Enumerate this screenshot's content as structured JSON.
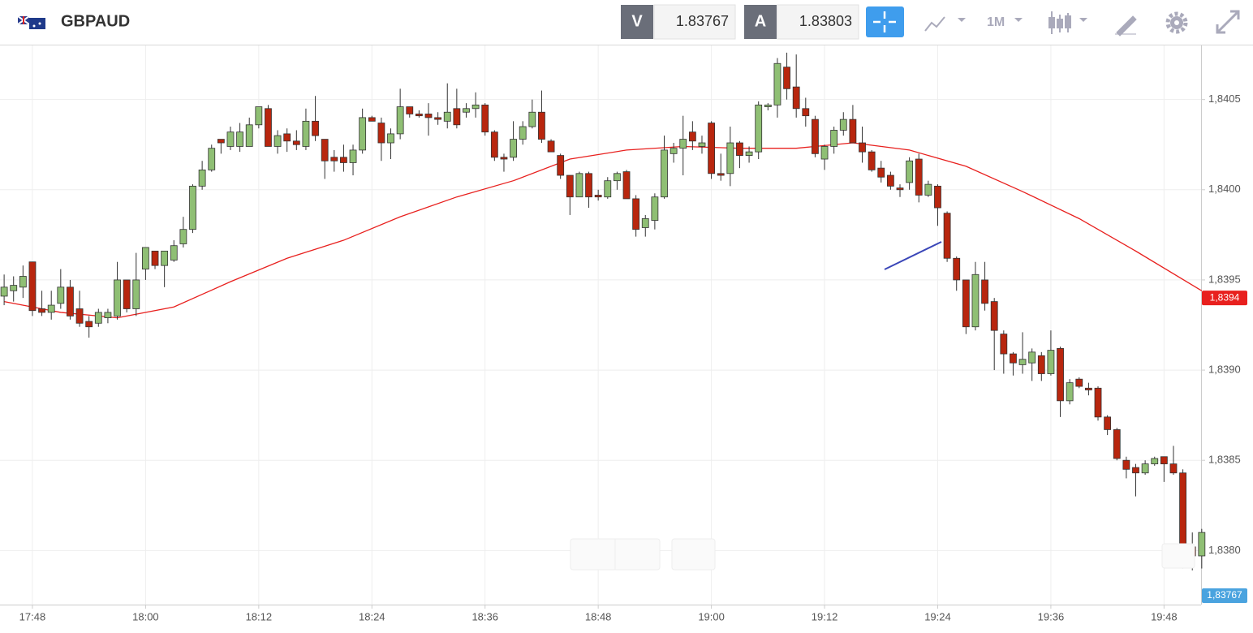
{
  "header": {
    "symbol": "GBPAUD",
    "bid_label": "V",
    "bid": "1.83767",
    "ask_label": "A",
    "ask": "1.83803",
    "timeframe": "1M"
  },
  "chart_data": {
    "type": "candlestick",
    "x": [
      "17:45",
      "17:46",
      "17:47",
      "17:48",
      "17:49",
      "17:50",
      "17:51",
      "17:52",
      "17:53",
      "17:54",
      "17:55",
      "17:56",
      "17:57",
      "17:58",
      "17:59",
      "18:00",
      "18:01",
      "18:02",
      "18:03",
      "18:04",
      "18:05",
      "18:06",
      "18:07",
      "18:08",
      "18:09",
      "18:10",
      "18:11",
      "18:12",
      "18:13",
      "18:14",
      "18:15",
      "18:16",
      "18:17",
      "18:18",
      "18:19",
      "18:20",
      "18:21",
      "18:22",
      "18:23",
      "18:24",
      "18:25",
      "18:26",
      "18:27",
      "18:28",
      "18:29",
      "18:30",
      "18:31",
      "18:32",
      "18:33",
      "18:34",
      "18:35",
      "18:36",
      "18:37",
      "18:38",
      "18:39",
      "18:40",
      "18:41",
      "18:42",
      "18:43",
      "18:44",
      "18:45",
      "18:46",
      "18:47",
      "18:48",
      "18:49",
      "18:50",
      "18:51",
      "18:52",
      "18:53",
      "18:54",
      "18:55",
      "18:56",
      "18:57",
      "18:58",
      "18:59",
      "19:00",
      "19:01",
      "19:02",
      "19:03",
      "19:04",
      "19:05",
      "19:06",
      "19:07",
      "19:08",
      "19:09",
      "19:10",
      "19:11",
      "19:12",
      "19:13",
      "19:14",
      "19:15",
      "19:16",
      "19:17",
      "19:18",
      "19:19",
      "19:20",
      "19:21",
      "19:22",
      "19:23",
      "19:24",
      "19:25",
      "19:26",
      "19:27",
      "19:28",
      "19:29",
      "19:30",
      "19:31",
      "19:32",
      "19:33",
      "19:34",
      "19:35",
      "19:36",
      "19:37",
      "19:38",
      "19:39",
      "19:40",
      "19:41",
      "19:42",
      "19:43",
      "19:44",
      "19:45",
      "19:46",
      "19:47",
      "19:48",
      "19:49",
      "19:50",
      "19:51",
      "19:52"
    ],
    "open": [
      1.83941,
      1.83944,
      1.83946,
      1.8396,
      1.83934,
      1.83932,
      1.83937,
      1.83946,
      1.83934,
      1.83927,
      1.83926,
      1.83929,
      1.8393,
      1.8395,
      1.83934,
      1.83956,
      1.83966,
      1.83958,
      1.83961,
      1.8397,
      1.83978,
      1.84002,
      1.84011,
      1.84028,
      1.84024,
      1.84024,
      1.84024,
      1.84036,
      1.84045,
      1.84024,
      1.84031,
      1.84027,
      1.84024,
      1.84038,
      1.84028,
      1.84018,
      1.84018,
      1.84015,
      1.84022,
      1.8404,
      1.84037,
      1.84026,
      1.84031,
      1.84046,
      1.84042,
      1.84042,
      1.8404,
      1.84038,
      1.84045,
      1.84043,
      1.84045,
      1.84047,
      1.84032,
      1.84018,
      1.84018,
      1.84028,
      1.84035,
      1.84043,
      1.84027,
      1.84019,
      1.84008,
      1.83996,
      1.84009,
      1.83997,
      1.83996,
      1.84005,
      1.8401,
      1.83995,
      1.83979,
      1.83983,
      1.83996,
      1.8402,
      1.84023,
      1.84032,
      1.84024,
      1.84037,
      1.84009,
      1.84009,
      1.84026,
      1.84019,
      1.84021,
      1.84046,
      1.84047,
      1.84068,
      1.84057,
      1.84045,
      1.84039,
      1.84017,
      1.84024,
      1.84033,
      1.84039,
      1.84026,
      1.84021,
      1.84012,
      1.84008,
      1.84001,
      1.84004,
      1.84017,
      1.83997,
      1.84002,
      1.83987,
      1.83962,
      1.8395,
      1.83924,
      1.8395,
      1.83938,
      1.8392,
      1.83909,
      1.83903,
      1.83904,
      1.83908,
      1.83898,
      1.83912,
      1.83883,
      1.83895,
      1.8389,
      1.8389,
      1.83874,
      1.83867,
      1.8385,
      1.83846,
      1.83843,
      1.83848,
      1.83852,
      1.83848,
      1.83843,
      1.83802,
      1.83797
    ],
    "high": [
      1.83953,
      1.83952,
      1.83958,
      1.8396,
      1.83944,
      1.83944,
      1.83956,
      1.8395,
      1.83944,
      1.8393,
      1.83934,
      1.83934,
      1.8396,
      1.8395,
      1.83965,
      1.83968,
      1.83966,
      1.83966,
      1.83972,
      1.83985,
      1.84003,
      1.84016,
      1.84025,
      1.84028,
      1.84035,
      1.84037,
      1.8404,
      1.84046,
      1.84047,
      1.84033,
      1.84034,
      1.84033,
      1.84045,
      1.84052,
      1.84028,
      1.84022,
      1.84025,
      1.84025,
      1.84045,
      1.84041,
      1.8404,
      1.84034,
      1.84056,
      1.84046,
      1.84044,
      1.84048,
      1.84043,
      1.84059,
      1.84056,
      1.84048,
      1.84054,
      1.84048,
      1.84033,
      1.8402,
      1.84038,
      1.84038,
      1.8405,
      1.84055,
      1.84028,
      1.8402,
      1.84008,
      1.8401,
      1.8401,
      1.84,
      1.84007,
      1.8401,
      1.84011,
      1.83997,
      1.83986,
      1.83998,
      1.8403,
      1.84026,
      1.84041,
      1.84038,
      1.8403,
      1.84038,
      1.8402,
      1.84035,
      1.84027,
      1.84024,
      1.84049,
      1.84048,
      1.84073,
      1.84076,
      1.84075,
      1.84051,
      1.84041,
      1.84025,
      1.84035,
      1.84043,
      1.84047,
      1.84035,
      1.84022,
      1.84016,
      1.8401,
      1.84003,
      1.84018,
      1.8402,
      1.84005,
      1.84003,
      1.83988,
      1.83963,
      1.8395,
      1.8396,
      1.8396,
      1.8394,
      1.83922,
      1.8391,
      1.83921,
      1.83912,
      1.8391,
      1.83922,
      1.83913,
      1.83895,
      1.83896,
      1.83893,
      1.83891,
      1.83875,
      1.83868,
      1.83852,
      1.83848,
      1.8385,
      1.83852,
      1.83852,
      1.83858,
      1.83845,
      1.8381,
      1.83812
    ],
    "low": [
      1.83936,
      1.83938,
      1.8394,
      1.8393,
      1.8393,
      1.83928,
      1.83934,
      1.83928,
      1.83924,
      1.83918,
      1.83924,
      1.83926,
      1.83928,
      1.83932,
      1.8393,
      1.8395,
      1.83956,
      1.83946,
      1.8396,
      1.83968,
      1.83976,
      1.84,
      1.8401,
      1.8402,
      1.84022,
      1.84021,
      1.84024,
      1.84034,
      1.84024,
      1.8402,
      1.84021,
      1.84022,
      1.84022,
      1.84027,
      1.84006,
      1.8401,
      1.8401,
      1.84008,
      1.8402,
      1.84038,
      1.84016,
      1.84017,
      1.84028,
      1.8404,
      1.8404,
      1.8403,
      1.84036,
      1.84034,
      1.84034,
      1.8404,
      1.8404,
      1.8403,
      1.84016,
      1.8401,
      1.84016,
      1.84025,
      1.84034,
      1.84026,
      1.84021,
      1.84006,
      1.83986,
      1.83996,
      1.8399,
      1.83994,
      1.83995,
      1.84,
      1.83995,
      1.83974,
      1.83974,
      1.83978,
      1.83995,
      1.84015,
      1.84008,
      1.84022,
      1.8402,
      1.84006,
      1.84005,
      1.84002,
      1.84012,
      1.84015,
      1.84017,
      1.84044,
      1.8404,
      1.8405,
      1.8404,
      1.84035,
      1.84018,
      1.84011,
      1.8402,
      1.8403,
      1.84026,
      1.84015,
      1.8401,
      1.84004,
      1.84,
      1.83996,
      1.84,
      1.83993,
      1.83996,
      1.8398,
      1.8396,
      1.83944,
      1.8392,
      1.83922,
      1.83933,
      1.839,
      1.83898,
      1.83897,
      1.83898,
      1.83894,
      1.83894,
      1.83897,
      1.83874,
      1.83881,
      1.8389,
      1.83886,
      1.83872,
      1.83864,
      1.8385,
      1.8384,
      1.8383,
      1.83842,
      1.83847,
      1.83838,
      1.83842,
      1.8379,
      1.83789,
      1.8379
    ],
    "close": [
      1.83946,
      1.83947,
      1.83952,
      1.83933,
      1.83932,
      1.83936,
      1.83946,
      1.8393,
      1.83926,
      1.83924,
      1.83932,
      1.83932,
      1.8395,
      1.83934,
      1.8395,
      1.83968,
      1.83958,
      1.83966,
      1.83969,
      1.83978,
      1.84002,
      1.84011,
      1.84023,
      1.84026,
      1.84032,
      1.84032,
      1.84036,
      1.84046,
      1.84024,
      1.8403,
      1.84027,
      1.84025,
      1.84038,
      1.8403,
      1.84016,
      1.84016,
      1.84015,
      1.84022,
      1.8404,
      1.84038,
      1.84026,
      1.84031,
      1.84046,
      1.84042,
      1.84041,
      1.8404,
      1.84039,
      1.84043,
      1.84036,
      1.84045,
      1.84047,
      1.84032,
      1.84018,
      1.84017,
      1.84028,
      1.84035,
      1.84043,
      1.84028,
      1.84021,
      1.84008,
      1.83996,
      1.84009,
      1.83996,
      1.83996,
      1.84005,
      1.84009,
      1.83995,
      1.83978,
      1.83984,
      1.83996,
      1.84022,
      1.84023,
      1.84028,
      1.84027,
      1.84026,
      1.84009,
      1.84008,
      1.84026,
      1.84019,
      1.84021,
      1.84047,
      1.84047,
      1.8407,
      1.84056,
      1.84045,
      1.84041,
      1.8402,
      1.84024,
      1.84033,
      1.84039,
      1.84026,
      1.84021,
      1.84011,
      1.84007,
      1.84002,
      1.84,
      1.84016,
      1.83997,
      1.84003,
      1.8399,
      1.83962,
      1.8395,
      1.83924,
      1.83953,
      1.83937,
      1.83922,
      1.83909,
      1.83904,
      1.83906,
      1.8391,
      1.83898,
      1.83911,
      1.83883,
      1.83893,
      1.83891,
      1.83889,
      1.83874,
      1.83867,
      1.83851,
      1.83845,
      1.83843,
      1.83848,
      1.83851,
      1.83848,
      1.83843,
      1.83797,
      1.83797,
      1.8381
    ],
    "up_color": "#8fbf74",
    "down_color": "#b8260e",
    "overlays": [
      {
        "x": [
          "17:45",
          "17:51",
          "17:57",
          "18:03",
          "18:09",
          "18:15",
          "18:21",
          "18:27",
          "18:33",
          "18:39",
          "18:45",
          "18:51",
          "18:57",
          "19:03",
          "19:09",
          "19:15",
          "19:21",
          "19:27",
          "19:33",
          "19:39",
          "19:45",
          "19:52"
        ],
        "values": [
          1.83938,
          1.83932,
          1.83929,
          1.83935,
          1.83949,
          1.83962,
          1.83972,
          1.83985,
          1.83996,
          1.84005,
          1.84017,
          1.84022,
          1.84024,
          1.84023,
          1.84023,
          1.84026,
          1.84022,
          1.84013,
          1.83999,
          1.83984,
          1.83966,
          1.83944
        ],
        "color": "#e8201e",
        "value_label": {
          "value": 1.8394,
          "label": "1,8394"
        }
      }
    ],
    "last_price": {
      "value": 1.83767,
      "label": "1,83767"
    },
    "last_price_color": "#4aa3df",
    "ylim": [
      1.8377,
      1.8408
    ],
    "yticks": [
      {
        "value": 1.838,
        "label": "1,8380"
      },
      {
        "value": 1.8385,
        "label": "1,8385"
      },
      {
        "value": 1.839,
        "label": "1,8390"
      },
      {
        "value": 1.8395,
        "label": "1,8395"
      },
      {
        "value": 1.84,
        "label": "1,8400"
      },
      {
        "value": 1.8405,
        "label": "1,8405"
      }
    ],
    "xticks": [
      "17:48",
      "18:00",
      "18:12",
      "18:24",
      "18:36",
      "18:48",
      "19:00",
      "19:12",
      "19:24",
      "19:36",
      "19:48"
    ],
    "grid": true
  }
}
